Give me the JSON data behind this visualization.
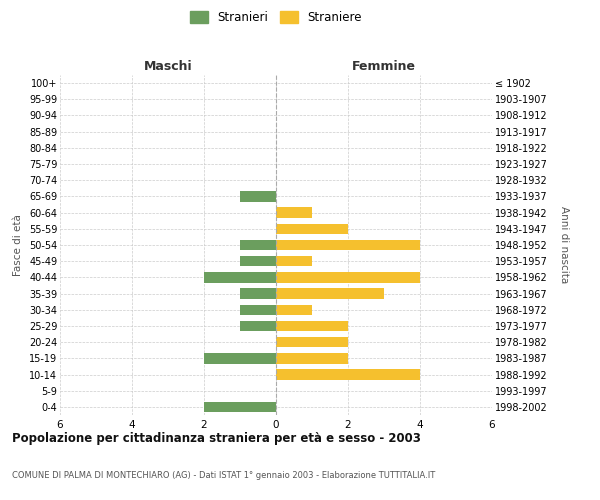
{
  "age_groups": [
    "0-4",
    "5-9",
    "10-14",
    "15-19",
    "20-24",
    "25-29",
    "30-34",
    "35-39",
    "40-44",
    "45-49",
    "50-54",
    "55-59",
    "60-64",
    "65-69",
    "70-74",
    "75-79",
    "80-84",
    "85-89",
    "90-94",
    "95-99",
    "100+"
  ],
  "birth_years": [
    "1998-2002",
    "1993-1997",
    "1988-1992",
    "1983-1987",
    "1978-1982",
    "1973-1977",
    "1968-1972",
    "1963-1967",
    "1958-1962",
    "1953-1957",
    "1948-1952",
    "1943-1947",
    "1938-1942",
    "1933-1937",
    "1928-1932",
    "1923-1927",
    "1918-1922",
    "1913-1917",
    "1908-1912",
    "1903-1907",
    "≤ 1902"
  ],
  "maschi": [
    2,
    0,
    0,
    2,
    0,
    1,
    1,
    1,
    2,
    1,
    1,
    0,
    0,
    1,
    0,
    0,
    0,
    0,
    0,
    0,
    0
  ],
  "femmine": [
    0,
    0,
    4,
    2,
    2,
    2,
    1,
    3,
    4,
    1,
    4,
    2,
    1,
    0,
    0,
    0,
    0,
    0,
    0,
    0,
    0
  ],
  "color_maschi": "#6b9e5e",
  "color_femmine": "#f5c02e",
  "title": "Popolazione per cittadinanza straniera per età e sesso - 2003",
  "subtitle": "COMUNE DI PALMA DI MONTECHIARO (AG) - Dati ISTAT 1° gennaio 2003 - Elaborazione TUTTITALIA.IT",
  "xlabel_left": "Maschi",
  "xlabel_right": "Femmine",
  "ylabel_left": "Fasce di età",
  "ylabel_right": "Anni di nascita",
  "legend_maschi": "Stranieri",
  "legend_femmine": "Straniere",
  "xlim": 6,
  "background_color": "#ffffff",
  "grid_color": "#cccccc"
}
